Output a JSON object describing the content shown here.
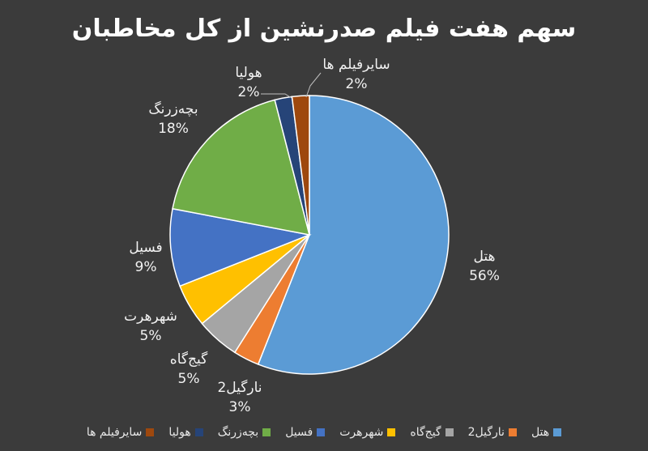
{
  "chart_data": {
    "type": "pie",
    "title": "سهم هفت فیلم صدرنشین از کل مخاطبان",
    "legend_position": "bottom",
    "slices": [
      {
        "name": "هتل",
        "value": 56,
        "label": "56%",
        "color": "#5b9bd5"
      },
      {
        "name": "نارگیل2",
        "value": 3,
        "label": "3%",
        "color": "#ed7d31"
      },
      {
        "name": "گیج‌گاه",
        "value": 5,
        "label": "5%",
        "color": "#a5a5a5"
      },
      {
        "name": "شهرهرت",
        "value": 5,
        "label": "5%",
        "color": "#ffc000"
      },
      {
        "name": "فسیل",
        "value": 9,
        "label": "9%",
        "color": "#4472c4"
      },
      {
        "name": "بچه‌زرنگ",
        "value": 18,
        "label": "18%",
        "color": "#70ad47"
      },
      {
        "name": "هولیا",
        "value": 2,
        "label": "2%",
        "color": "#264478"
      },
      {
        "name": "سایرفیلم ها",
        "value": 2,
        "label": "2%",
        "color": "#9e480e"
      }
    ]
  }
}
